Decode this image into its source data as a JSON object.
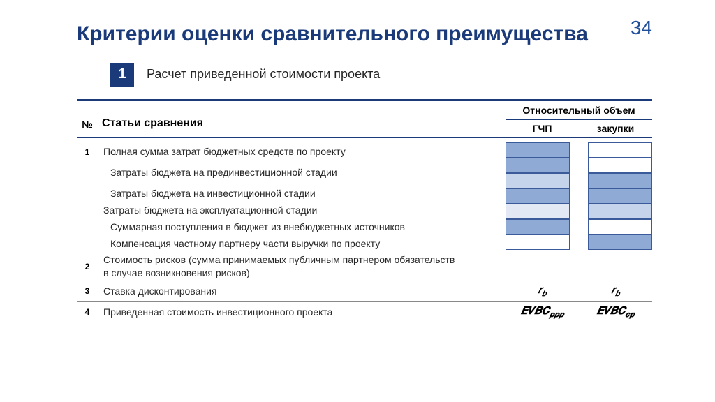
{
  "page_number": "34",
  "title": "Критерии оценки сравнительного преимущества",
  "subtitle_badge": "1",
  "subtitle_text": "Расчет приведенной стоимости проекта",
  "header": {
    "num": "№",
    "articles": "Статьи сравнения",
    "relative_volume": "Относительный объем",
    "col_gchp": "ГЧП",
    "col_zakupki": "закупки"
  },
  "rows": [
    {
      "num": "1",
      "label": "Полная сумма затрат бюджетных средств по проекту",
      "indent": false
    },
    {
      "num": "",
      "label": "Затраты бюджета на прединвестиционной стадии",
      "indent": true
    },
    {
      "num": "",
      "label": "Затраты бюджета на инвестиционной стадии",
      "indent": true
    },
    {
      "num": "",
      "label": "Затраты бюджета на эксплуатационной стадии",
      "indent": false
    },
    {
      "num": "",
      "label": "Суммарная поступления в бюджет из внебюджетных источников",
      "indent": true
    },
    {
      "num": "",
      "label": "Компенсация частному партнеру части выручки по проекту",
      "indent": true
    },
    {
      "num": "2",
      "label": "Стоимость рисков (сумма принимаемых публичным партнером обязательств в случае возникновения рисков)",
      "indent": false
    },
    {
      "num": "3",
      "label": "Ставка дисконтирования",
      "indent": false
    },
    {
      "num": "4",
      "label": "Приведенная стоимость инвестиционного проекта",
      "indent": false
    }
  ],
  "bars": [
    {
      "left": "fill-dark",
      "right": "fill-white"
    },
    {
      "left": "fill-dark",
      "right": "fill-white"
    },
    {
      "left": "fill-med",
      "right": "fill-dark"
    },
    {
      "left": "fill-dark",
      "right": "fill-dark"
    },
    {
      "left": "fill-light",
      "right": "fill-med"
    },
    {
      "left": "fill-dark",
      "right": "fill-white"
    },
    {
      "left": "fill-white",
      "right": "fill-dark"
    }
  ],
  "formulas": {
    "row3_left_html": "𝑟<sub>𝑏</sub>",
    "row3_right_html": "𝑟<sub>𝑏</sub>",
    "row4_left_html": "𝑬𝑽𝑩𝑪<sub>𝒑𝒑𝒑</sub>",
    "row4_right_html": "𝑬𝑽𝑩𝑪<sub>𝒄𝒑</sub>"
  },
  "colors": {
    "title": "#1a3a7a",
    "pagenum": "#1f4e9b",
    "rule": "#1a3a7a",
    "bar_border": "#3a5a9a",
    "bar_dark": "#8faad5",
    "bar_med": "#c5d4ea",
    "bar_light": "#e2e9f4",
    "bar_white": "#ffffff"
  }
}
